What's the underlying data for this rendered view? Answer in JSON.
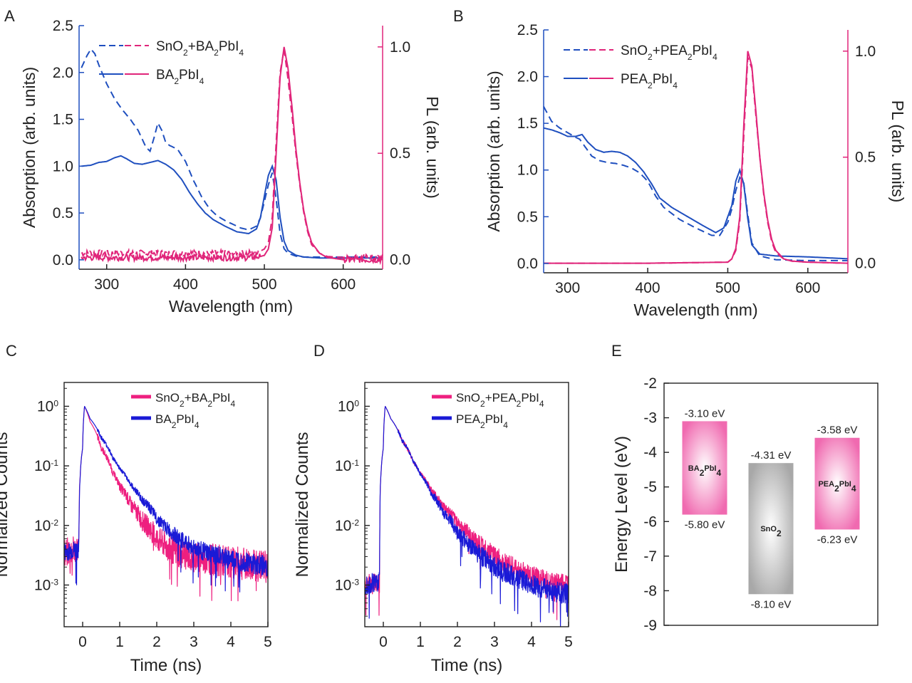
{
  "panels": {
    "A": "A",
    "B": "B",
    "C": "C",
    "D": "D",
    "E": "E"
  },
  "colors": {
    "blue": "#1f4fbf",
    "pink": "#e0257a",
    "navy": "#1a1ad6",
    "magenta": "#ee1f7f",
    "band_pink": "#f06ab0",
    "band_gray": "#a8a8a8"
  },
  "chart_data": [
    {
      "id": "A",
      "type": "line",
      "xlabel": "Wavelength (nm)",
      "ylabel": "Absorption (arb. units)",
      "y2label": "PL (arb. units)",
      "xlim": [
        265,
        650
      ],
      "ylim": [
        -0.1,
        2.5
      ],
      "y2lim": [
        -0.045,
        1.1
      ],
      "log_y": false,
      "xticks": [
        "300",
        "400",
        "500",
        "600"
      ],
      "yticks": [
        "0.0",
        "0.5",
        "1.0",
        "1.5",
        "2.0",
        "2.5"
      ],
      "y2ticks": [
        "0.0",
        "0.5",
        "1.0"
      ],
      "legend": [
        {
          "pre": "SnO",
          "sub1": "2",
          "mid": "+BA",
          "sub2": "2",
          "post": "PbI",
          "sub3": "4",
          "style": "dashed"
        },
        {
          "pre": "BA",
          "sub1": "2",
          "mid": "PbI",
          "sub2": "4",
          "post": "",
          "sub3": "",
          "style": "solid"
        }
      ],
      "legend_position": "top-left",
      "series": [
        {
          "axis": "left",
          "style": "dashed",
          "color": "blue",
          "x": [
            268,
            275,
            280,
            285,
            290,
            300,
            310,
            320,
            330,
            340,
            350,
            355,
            360,
            365,
            370,
            375,
            380,
            390,
            400,
            410,
            420,
            430,
            440,
            450,
            460,
            470,
            480,
            490,
            495,
            500,
            505,
            510,
            515,
            520,
            525,
            530,
            540,
            550,
            570,
            600,
            650
          ],
          "y": [
            2.05,
            2.18,
            2.25,
            2.2,
            2.08,
            1.88,
            1.72,
            1.6,
            1.5,
            1.38,
            1.2,
            1.16,
            1.3,
            1.46,
            1.38,
            1.25,
            1.22,
            1.18,
            1.05,
            0.85,
            0.68,
            0.55,
            0.47,
            0.42,
            0.38,
            0.34,
            0.32,
            0.36,
            0.45,
            0.62,
            0.8,
            0.93,
            0.65,
            0.28,
            0.12,
            0.07,
            0.04,
            0.03,
            0.03,
            0.03,
            0.03
          ]
        },
        {
          "axis": "left",
          "style": "solid",
          "color": "blue",
          "x": [
            268,
            280,
            290,
            300,
            310,
            318,
            325,
            335,
            345,
            355,
            365,
            375,
            385,
            395,
            405,
            415,
            425,
            435,
            450,
            465,
            480,
            490,
            495,
            500,
            505,
            510,
            515,
            520,
            525,
            530,
            540,
            550,
            570,
            600,
            650
          ],
          "y": [
            1.0,
            1.01,
            1.04,
            1.05,
            1.09,
            1.11,
            1.08,
            1.03,
            1.02,
            1.04,
            1.06,
            1.02,
            0.96,
            0.86,
            0.72,
            0.6,
            0.5,
            0.43,
            0.36,
            0.3,
            0.28,
            0.33,
            0.45,
            0.68,
            0.9,
            1.0,
            0.85,
            0.45,
            0.2,
            0.1,
            0.05,
            0.03,
            0.02,
            0.02,
            0.02
          ]
        },
        {
          "axis": "right",
          "style": "dashed",
          "color": "pink",
          "x": [
            268,
            300,
            400,
            480,
            495,
            500,
            505,
            510,
            515,
            520,
            525,
            530,
            535,
            540,
            545,
            550,
            555,
            560,
            570,
            580,
            600,
            650
          ],
          "y": [
            0.03,
            0.03,
            0.03,
            0.03,
            0.04,
            0.05,
            0.08,
            0.2,
            0.55,
            0.88,
            0.99,
            0.85,
            0.68,
            0.5,
            0.35,
            0.22,
            0.13,
            0.07,
            0.03,
            0.015,
            0.01,
            0.01
          ]
        },
        {
          "axis": "right",
          "style": "solid",
          "color": "pink",
          "x": [
            268,
            300,
            400,
            480,
            495,
            500,
            505,
            510,
            515,
            520,
            525,
            530,
            535,
            540,
            545,
            550,
            555,
            560,
            570,
            580,
            600,
            650
          ],
          "y": [
            0.01,
            0.01,
            0.01,
            0.01,
            0.015,
            0.02,
            0.05,
            0.15,
            0.5,
            0.86,
            1.0,
            0.9,
            0.72,
            0.52,
            0.36,
            0.23,
            0.14,
            0.08,
            0.03,
            0.01,
            0.0,
            0.0
          ]
        }
      ]
    },
    {
      "id": "B",
      "type": "line",
      "xlabel": "Wavelength (nm)",
      "ylabel": "Absorption (arb. units)",
      "y2label": "PL (arb. units)",
      "xlim": [
        270,
        650
      ],
      "ylim": [
        -0.1,
        2.5
      ],
      "y2lim": [
        -0.045,
        1.1
      ],
      "log_y": false,
      "xticks": [
        "300",
        "400",
        "500",
        "600"
      ],
      "yticks": [
        "0.0",
        "0.5",
        "1.0",
        "1.5",
        "2.0",
        "2.5"
      ],
      "y2ticks": [
        "0.0",
        "0.5",
        "1.0"
      ],
      "legend": [
        {
          "pre": "SnO",
          "sub1": "2",
          "mid": "+PEA",
          "sub2": "2",
          "post": "PbI",
          "sub3": "4",
          "style": "dashed"
        },
        {
          "pre": "PEA",
          "sub1": "2",
          "mid": "PbI",
          "sub2": "4",
          "post": "",
          "sub3": "",
          "style": "solid"
        }
      ],
      "legend_position": "top-left",
      "series": [
        {
          "axis": "left",
          "style": "dashed",
          "color": "blue",
          "x": [
            270,
            280,
            290,
            300,
            310,
            315,
            320,
            330,
            340,
            350,
            360,
            370,
            380,
            390,
            400,
            410,
            420,
            440,
            460,
            480,
            490,
            500,
            505,
            510,
            515,
            520,
            525,
            530,
            540,
            560,
            600,
            650
          ],
          "y": [
            1.68,
            1.52,
            1.45,
            1.4,
            1.35,
            1.33,
            1.27,
            1.15,
            1.1,
            1.08,
            1.07,
            1.05,
            1.02,
            0.97,
            0.88,
            0.72,
            0.6,
            0.47,
            0.38,
            0.3,
            0.3,
            0.44,
            0.58,
            0.78,
            0.92,
            0.86,
            0.52,
            0.22,
            0.08,
            0.04,
            0.03,
            0.03
          ]
        },
        {
          "axis": "left",
          "style": "solid",
          "color": "blue",
          "x": [
            270,
            280,
            290,
            300,
            310,
            318,
            325,
            335,
            345,
            355,
            365,
            375,
            385,
            395,
            405,
            415,
            430,
            450,
            470,
            485,
            495,
            505,
            510,
            515,
            520,
            525,
            530,
            540,
            560,
            600,
            650
          ],
          "y": [
            1.45,
            1.43,
            1.4,
            1.36,
            1.36,
            1.38,
            1.3,
            1.22,
            1.19,
            1.2,
            1.19,
            1.15,
            1.08,
            0.98,
            0.85,
            0.7,
            0.6,
            0.5,
            0.4,
            0.33,
            0.38,
            0.62,
            0.88,
            1.0,
            0.85,
            0.48,
            0.2,
            0.1,
            0.08,
            0.07,
            0.05
          ]
        },
        {
          "axis": "right",
          "style": "dashed",
          "color": "pink",
          "x": [
            270,
            300,
            400,
            500,
            505,
            510,
            515,
            520,
            525,
            530,
            535,
            540,
            545,
            550,
            555,
            560,
            570,
            580,
            600,
            650
          ],
          "y": [
            0.0,
            0.0,
            0.0,
            0.005,
            0.02,
            0.06,
            0.2,
            0.6,
            0.97,
            0.92,
            0.7,
            0.5,
            0.32,
            0.19,
            0.1,
            0.05,
            0.02,
            0.01,
            0.005,
            0.0
          ]
        },
        {
          "axis": "right",
          "style": "solid",
          "color": "pink",
          "x": [
            270,
            300,
            400,
            500,
            505,
            510,
            515,
            520,
            525,
            530,
            535,
            540,
            545,
            550,
            555,
            560,
            570,
            580,
            600,
            650
          ],
          "y": [
            0.0,
            0.0,
            0.0,
            0.005,
            0.02,
            0.07,
            0.22,
            0.65,
            1.0,
            0.93,
            0.72,
            0.5,
            0.33,
            0.2,
            0.11,
            0.06,
            0.02,
            0.01,
            0.005,
            0.0
          ]
        }
      ]
    },
    {
      "id": "C",
      "type": "line",
      "xlabel": "Time (ns)",
      "ylabel": "Normalized Counts",
      "xlim": [
        -0.5,
        5
      ],
      "ylim_log10": [
        -3.7,
        0.4
      ],
      "log_y": true,
      "xticks": [
        "0",
        "1",
        "2",
        "3",
        "4",
        "5"
      ],
      "yticks": [
        {
          "base": "10",
          "exp": "0"
        },
        {
          "base": "10",
          "exp": "-1"
        },
        {
          "base": "10",
          "exp": "-2"
        },
        {
          "base": "10",
          "exp": "-3"
        }
      ],
      "legend": [
        {
          "pre": "SnO",
          "sub1": "2",
          "mid": "+BA",
          "sub2": "2",
          "post": "PbI",
          "sub3": "4",
          "color": "magenta"
        },
        {
          "pre": "BA",
          "sub1": "2",
          "mid": "PbI",
          "sub2": "4",
          "post": "",
          "sub3": "",
          "color": "navy"
        }
      ],
      "legend_position": "top-right",
      "series": [
        {
          "color": "magenta",
          "noise": "high",
          "x": [
            -0.5,
            -0.1,
            0.0,
            0.05,
            0.2,
            0.5,
            0.8,
            1.0,
            1.3,
            1.6,
            2.0,
            2.3,
            2.6,
            3.0,
            3.5,
            4.0,
            4.5,
            5.0
          ],
          "y": [
            0.0035,
            0.004,
            0.2,
            1.0,
            0.55,
            0.2,
            0.08,
            0.045,
            0.022,
            0.012,
            0.006,
            0.0042,
            0.0034,
            0.003,
            0.0027,
            0.0024,
            0.0022,
            0.002
          ]
        },
        {
          "color": "navy",
          "noise": "normal",
          "x": [
            -0.5,
            -0.1,
            0.0,
            0.05,
            0.2,
            0.5,
            0.8,
            1.0,
            1.3,
            1.6,
            2.0,
            2.3,
            2.6,
            3.0,
            3.5,
            4.0,
            4.5,
            5.0
          ],
          "y": [
            0.0035,
            0.004,
            0.2,
            1.0,
            0.62,
            0.3,
            0.14,
            0.09,
            0.048,
            0.027,
            0.013,
            0.0085,
            0.006,
            0.0042,
            0.0032,
            0.0027,
            0.0024,
            0.002
          ]
        }
      ]
    },
    {
      "id": "D",
      "type": "line",
      "xlabel": "Time (ns)",
      "ylabel": "Normalized Counts",
      "xlim": [
        -0.5,
        5
      ],
      "ylim_log10": [
        -3.7,
        0.4
      ],
      "log_y": true,
      "xticks": [
        "0",
        "1",
        "2",
        "3",
        "4",
        "5"
      ],
      "yticks": [
        {
          "base": "10",
          "exp": "0"
        },
        {
          "base": "10",
          "exp": "-1"
        },
        {
          "base": "10",
          "exp": "-2"
        },
        {
          "base": "10",
          "exp": "-3"
        }
      ],
      "legend": [
        {
          "pre": "SnO",
          "sub1": "2",
          "mid": "+PEA",
          "sub2": "2",
          "post": "PbI",
          "sub3": "4",
          "color": "magenta"
        },
        {
          "pre": "PEA",
          "sub1": "2",
          "mid": "PbI",
          "sub2": "4",
          "post": "",
          "sub3": "",
          "color": "navy"
        }
      ],
      "legend_position": "top-right",
      "series": [
        {
          "color": "magenta",
          "noise": "normal",
          "x": [
            -0.5,
            -0.1,
            0.0,
            0.05,
            0.2,
            0.5,
            0.8,
            1.0,
            1.3,
            1.6,
            2.0,
            2.4,
            2.8,
            3.2,
            3.6,
            4.0,
            4.5,
            5.0
          ],
          "y": [
            0.001,
            0.0011,
            0.2,
            1.0,
            0.62,
            0.27,
            0.12,
            0.075,
            0.038,
            0.021,
            0.011,
            0.0062,
            0.0038,
            0.0025,
            0.0018,
            0.0014,
            0.0011,
            0.001
          ]
        },
        {
          "color": "navy",
          "noise": "normal",
          "x": [
            -0.5,
            -0.1,
            0.0,
            0.05,
            0.2,
            0.5,
            0.8,
            1.0,
            1.3,
            1.6,
            2.0,
            2.4,
            2.8,
            3.2,
            3.6,
            4.0,
            4.5,
            5.0
          ],
          "y": [
            0.001,
            0.0011,
            0.2,
            1.0,
            0.62,
            0.27,
            0.12,
            0.072,
            0.034,
            0.017,
            0.0075,
            0.004,
            0.0025,
            0.0017,
            0.0013,
            0.001,
            0.0008,
            0.0007
          ]
        }
      ]
    },
    {
      "id": "E",
      "type": "bar",
      "ylabel": "Energy Level (eV)",
      "ylim": [
        -9,
        -2
      ],
      "yticks": [
        "-2",
        "-3",
        "-4",
        "-5",
        "-6",
        "-7",
        "-8",
        "-9"
      ],
      "bands": [
        {
          "name": "BA",
          "sub1": "2",
          "mid": "PbI",
          "sub2": "4",
          "top": -3.1,
          "bottom": -5.8,
          "top_label": "-3.10 eV",
          "bottom_label": "-5.80 eV",
          "color": "band_pink"
        },
        {
          "name": "SnO",
          "sub1": "2",
          "mid": "",
          "sub2": "",
          "top": -4.31,
          "bottom": -8.1,
          "top_label": "-4.31 eV",
          "bottom_label": "-8.10 eV",
          "color": "band_gray"
        },
        {
          "name": "PEA",
          "sub1": "2",
          "mid": "PbI",
          "sub2": "4",
          "top": -3.58,
          "bottom": -6.23,
          "top_label": "-3.58 eV",
          "bottom_label": "-6.23 eV",
          "color": "band_pink"
        }
      ]
    }
  ]
}
